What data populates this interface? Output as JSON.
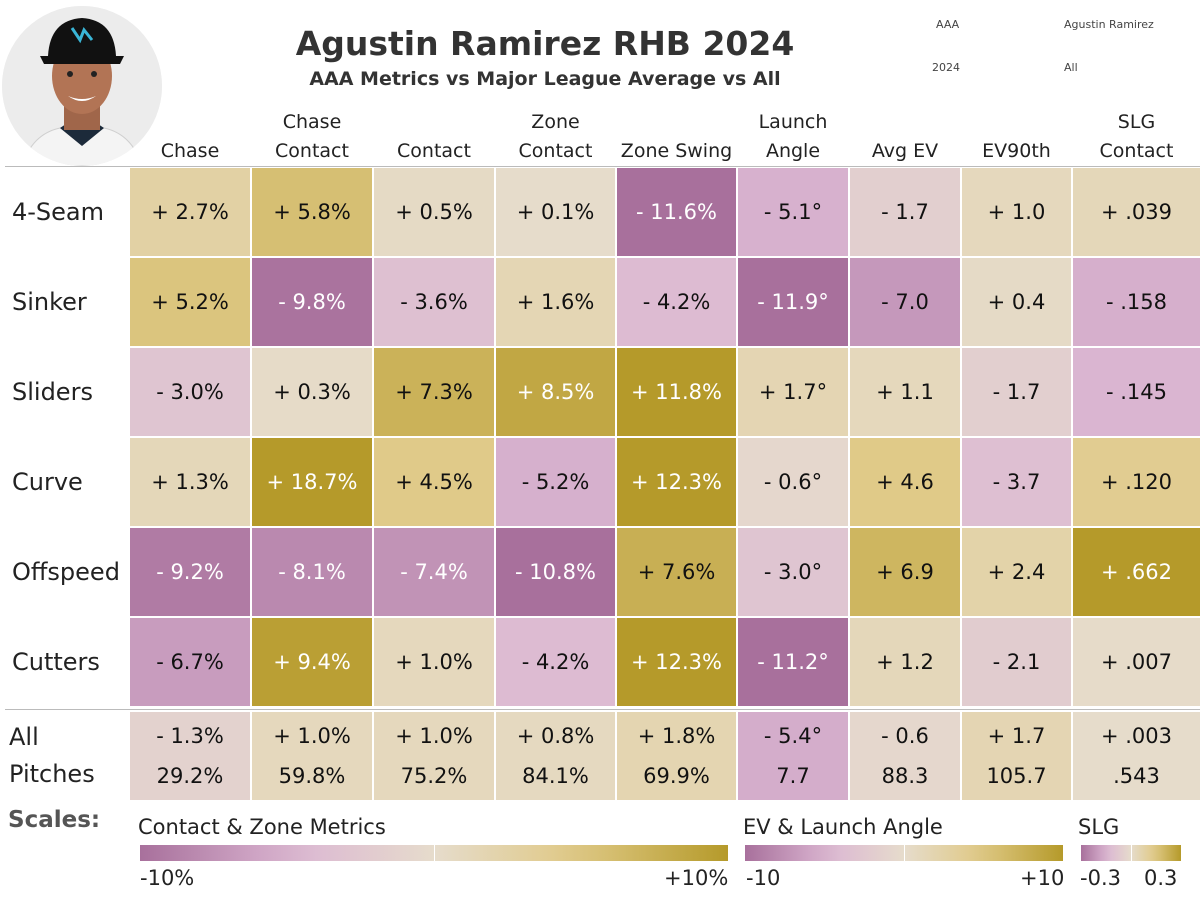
{
  "header": {
    "title": "Agustin Ramirez RHB 2024",
    "subtitle": "AAA Metrics vs Major League Average vs All",
    "filters": [
      "AAA",
      "Agustin Ramirez",
      "2024",
      "All"
    ]
  },
  "colors": {
    "purple_dark": "#a8709c",
    "purple_light": "#dcb8d3",
    "neutral": "#e6dccc",
    "gold_light": "#e0ca88",
    "gold_dark": "#b59a2a"
  },
  "chart_data": {
    "type": "heatmap",
    "title": "Agustin Ramirez RHB 2024",
    "subtitle": "AAA Metrics vs Major League Average vs All",
    "columns": [
      {
        "label": "Chase",
        "scale": "pct"
      },
      {
        "label": "Chase\nContact",
        "scale": "pct"
      },
      {
        "label": "Contact",
        "scale": "pct"
      },
      {
        "label": "Zone\nContact",
        "scale": "pct"
      },
      {
        "label": "Zone Swing",
        "scale": "pct"
      },
      {
        "label": "Launch\nAngle",
        "scale": "ev"
      },
      {
        "label": "Avg EV",
        "scale": "ev"
      },
      {
        "label": "EV90th",
        "scale": "ev"
      },
      {
        "label": "SLG\nContact",
        "scale": "slg"
      }
    ],
    "rows": [
      {
        "label": "4-Seam",
        "values": [
          2.7,
          5.8,
          0.5,
          0.1,
          -11.6,
          -5.1,
          -1.7,
          1.0,
          0.039
        ],
        "display": [
          "+ 2.7%",
          "+ 5.8%",
          "+ 0.5%",
          "+ 0.1%",
          "- 11.6%",
          "- 5.1°",
          "- 1.7",
          "+ 1.0",
          "+ .039"
        ]
      },
      {
        "label": "Sinker",
        "values": [
          5.2,
          -9.8,
          -3.6,
          1.6,
          -4.2,
          -11.9,
          -7.0,
          0.4,
          -0.158
        ],
        "display": [
          "+ 5.2%",
          "- 9.8%",
          "- 3.6%",
          "+ 1.6%",
          "- 4.2%",
          "- 11.9°",
          "- 7.0",
          "+ 0.4",
          "- .158"
        ]
      },
      {
        "label": "Sliders",
        "values": [
          -3.0,
          0.3,
          7.3,
          8.5,
          11.8,
          1.7,
          1.1,
          -1.7,
          -0.145
        ],
        "display": [
          "- 3.0%",
          "+ 0.3%",
          "+ 7.3%",
          "+ 8.5%",
          "+ 11.8%",
          "+ 1.7°",
          "+ 1.1",
          "- 1.7",
          "- .145"
        ]
      },
      {
        "label": "Curve",
        "values": [
          1.3,
          18.7,
          4.5,
          -5.2,
          12.3,
          -0.6,
          4.6,
          -3.7,
          0.12
        ],
        "display": [
          "+ 1.3%",
          "+ 18.7%",
          "+ 4.5%",
          "- 5.2%",
          "+ 12.3%",
          "- 0.6°",
          "+ 4.6",
          "- 3.7",
          "+ .120"
        ]
      },
      {
        "label": "Offspeed",
        "values": [
          -9.2,
          -8.1,
          -7.4,
          -10.8,
          7.6,
          -3.0,
          6.9,
          2.4,
          0.662
        ],
        "display": [
          "- 9.2%",
          "- 8.1%",
          "- 7.4%",
          "- 10.8%",
          "+ 7.6%",
          "- 3.0°",
          "+ 6.9",
          "+ 2.4",
          "+ .662"
        ]
      },
      {
        "label": "Cutters",
        "values": [
          -6.7,
          9.4,
          1.0,
          -4.2,
          12.3,
          -11.2,
          1.2,
          -2.1,
          0.007
        ],
        "display": [
          "- 6.7%",
          "+ 9.4%",
          "+ 1.0%",
          "- 4.2%",
          "+ 12.3%",
          "- 11.2°",
          "+ 1.2",
          "- 2.1",
          "+ .007"
        ]
      }
    ],
    "all_pitches": {
      "label": "All\nPitches",
      "values": [
        -1.3,
        1.0,
        1.0,
        0.8,
        1.8,
        -5.4,
        -0.6,
        1.7,
        0.003
      ],
      "display": [
        "- 1.3%",
        "+ 1.0%",
        "+ 1.0%",
        "+ 0.8%",
        "+ 1.8%",
        "- 5.4°",
        "- 0.6",
        "+ 1.7",
        "+ .003"
      ],
      "actual": [
        "29.2%",
        "59.8%",
        "75.2%",
        "84.1%",
        "69.9%",
        "7.7",
        "88.3",
        "105.7",
        ".543"
      ]
    },
    "legend": {
      "label": "Scales:",
      "scales": [
        {
          "id": "pct",
          "title": "Contact & Zone Metrics",
          "min": -10,
          "max": 10,
          "min_label": "-10%",
          "max_label": "+10%"
        },
        {
          "id": "ev",
          "title": "EV & Launch Angle",
          "min": -10,
          "max": 10,
          "min_label": "-10",
          "max_label": "+10"
        },
        {
          "id": "slg",
          "title": "SLG",
          "min": -0.3,
          "max": 0.3,
          "min_label": "-0.3",
          "max_label": "0.3"
        }
      ]
    }
  }
}
